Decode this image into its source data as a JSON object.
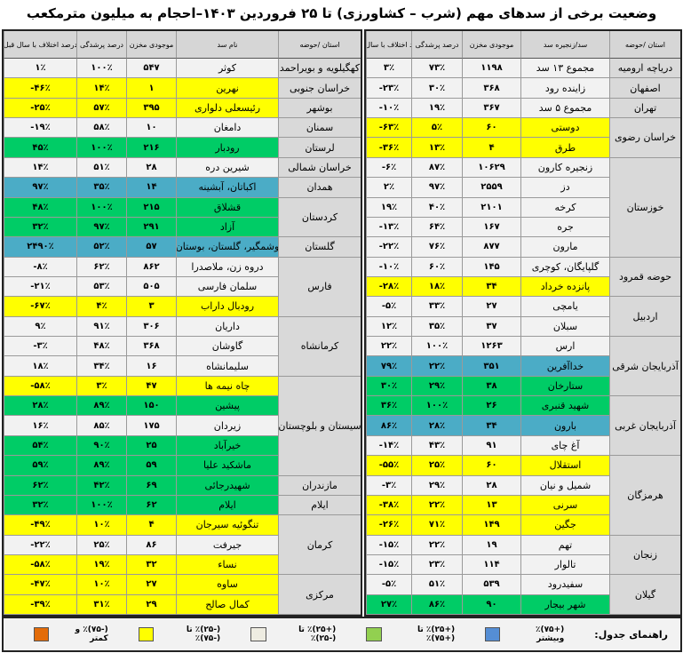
{
  "title": "وضعیت برخی از سدهای مهم (شرب – کشاورزی) تا ۲۵ فروردین ۱۴۰۳–احجام به میلیون مترمکعب",
  "headers": {
    "right": [
      "استان /حوضه",
      "سد/زنجیره سد",
      "موجودی مخزن",
      "درصد پرشدگی",
      "درصد اختلاف با سال قبل"
    ],
    "left": [
      "استان /حوضه",
      "نام سد",
      "موجودی مخزن",
      "درصد پرشدگی",
      "درصد اختلاف با سال قبل"
    ]
  },
  "colors": {
    "orange": "#e36c09",
    "yellow": "#ffff00",
    "white": "#f2f2f2",
    "green": "#00cc66",
    "light_green": "#92d050",
    "blue": "#4bacc6",
    "legend_blue": "#558ed5",
    "province_gray": "#d9d9d9"
  },
  "right_table": {
    "provinces": [
      {
        "name": "دریاچه ارومیه",
        "start": 0,
        "span": 1
      },
      {
        "name": "اصفهان",
        "start": 1,
        "span": 1
      },
      {
        "name": "تهران",
        "start": 2,
        "span": 1
      },
      {
        "name": "خراسان رضوی",
        "start": 3,
        "span": 2
      },
      {
        "name": "خوزستان",
        "start": 5,
        "span": 5
      },
      {
        "name": "حوضه قمرود",
        "start": 10,
        "span": 2
      },
      {
        "name": "اردبیل",
        "start": 12,
        "span": 2
      },
      {
        "name": "آذربایجان شرقی",
        "start": 14,
        "span": 3
      },
      {
        "name": "آذربایجان غربی",
        "start": 17,
        "span": 3
      },
      {
        "name": "هرمزگان",
        "start": 20,
        "span": 4
      },
      {
        "name": "زنجان",
        "start": 24,
        "span": 2
      },
      {
        "name": "گیلان",
        "start": 26,
        "span": 2
      }
    ],
    "rows": [
      {
        "dam": "مجموع ۱۳ سد",
        "storage": "۱۱۹۸",
        "fill": "۷۳٪",
        "diff": "۳٪",
        "color": "white"
      },
      {
        "dam": "زاینده رود",
        "storage": "۳۶۸",
        "fill": "۳۰٪",
        "diff": "-۲۳٪",
        "color": "white"
      },
      {
        "dam": "مجموع ۵ سد",
        "storage": "۳۶۷",
        "fill": "۱۹٪",
        "diff": "-۱۰٪",
        "color": "white"
      },
      {
        "dam": "دوستی",
        "storage": "۶۰",
        "fill": "۵٪",
        "diff": "-۶۳٪",
        "color": "yellow"
      },
      {
        "dam": "طرق",
        "storage": "۴",
        "fill": "۱۳٪",
        "diff": "-۳۶٪",
        "color": "yellow"
      },
      {
        "dam": "زنجیره کارون",
        "storage": "۱۰۶۲۹",
        "fill": "۸۷٪",
        "diff": "-۶٪",
        "color": "white"
      },
      {
        "dam": "دز",
        "storage": "۲۵۵۹",
        "fill": "۹۷٪",
        "diff": "۲٪",
        "color": "white"
      },
      {
        "dam": "کرخه",
        "storage": "۲۱۰۱",
        "fill": "۴۰٪",
        "diff": "۱۹٪",
        "color": "white"
      },
      {
        "dam": "جره",
        "storage": "۱۶۷",
        "fill": "۶۴٪",
        "diff": "-۱۳٪",
        "color": "white"
      },
      {
        "dam": "مارون",
        "storage": "۸۷۷",
        "fill": "۷۶٪",
        "diff": "-۲۲٪",
        "color": "white"
      },
      {
        "dam": "گلپایگان، کوچری",
        "storage": "۱۴۵",
        "fill": "۶۰٪",
        "diff": "-۱۰٪",
        "color": "white"
      },
      {
        "dam": "پانزده خرداد",
        "storage": "۳۴",
        "fill": "۱۸٪",
        "diff": "-۲۸٪",
        "color": "yellow"
      },
      {
        "dam": "یامچی",
        "storage": "۲۷",
        "fill": "۳۳٪",
        "diff": "-۵٪",
        "color": "white"
      },
      {
        "dam": "سبلان",
        "storage": "۳۷",
        "fill": "۳۵٪",
        "diff": "۱۲٪",
        "color": "white"
      },
      {
        "dam": "ارس",
        "storage": "۱۲۶۳",
        "fill": "۱۰۰٪",
        "diff": "۲۲٪",
        "color": "white"
      },
      {
        "dam": "خداآفرین",
        "storage": "۳۵۱",
        "fill": "۲۲٪",
        "diff": "۷۹٪",
        "color": "blue"
      },
      {
        "dam": "ستارخان",
        "storage": "۳۸",
        "fill": "۲۹٪",
        "diff": "۳۰٪",
        "color": "green"
      },
      {
        "dam": "شهید قنبری",
        "storage": "۲۶",
        "fill": "۱۰۰٪",
        "diff": "۳۶٪",
        "color": "green"
      },
      {
        "dam": "بارون",
        "storage": "۳۴",
        "fill": "۲۸٪",
        "diff": "۸۶٪",
        "color": "blue"
      },
      {
        "dam": "آغ چای",
        "storage": "۹۱",
        "fill": "۴۳٪",
        "diff": "-۱۴٪",
        "color": "white"
      },
      {
        "dam": "استقلال",
        "storage": "۶۰",
        "fill": "۲۵٪",
        "diff": "-۵۵٪",
        "color": "yellow"
      },
      {
        "dam": "شمیل و نیان",
        "storage": "۲۸",
        "fill": "۲۹٪",
        "diff": "-۳٪",
        "color": "white"
      },
      {
        "dam": "سرنی",
        "storage": "۱۳",
        "fill": "۲۲٪",
        "diff": "-۳۸٪",
        "color": "yellow"
      },
      {
        "dam": "جگین",
        "storage": "۱۴۹",
        "fill": "۷۱٪",
        "diff": "-۲۶٪",
        "color": "yellow"
      },
      {
        "dam": "تهم",
        "storage": "۱۹",
        "fill": "۲۲٪",
        "diff": "-۱۵٪",
        "color": "white"
      },
      {
        "dam": "تالوار",
        "storage": "۱۱۴",
        "fill": "۲۳٪",
        "diff": "-۱۵٪",
        "color": "white"
      },
      {
        "dam": "سفیدرود",
        "storage": "۵۳۹",
        "fill": "۵۱٪",
        "diff": "-۵٪",
        "color": "white"
      },
      {
        "dam": "شهر بیجار",
        "storage": "۹۰",
        "fill": "۸۶٪",
        "diff": "۲۷٪",
        "color": "green"
      }
    ]
  },
  "left_table": {
    "provinces": [
      {
        "name": "کهگیلویه و بویراحمد",
        "start": 0,
        "span": 1
      },
      {
        "name": "خراسان جنوبی",
        "start": 1,
        "span": 1
      },
      {
        "name": "بوشهر",
        "start": 2,
        "span": 1
      },
      {
        "name": "سمنان",
        "start": 3,
        "span": 1
      },
      {
        "name": "لرستان",
        "start": 4,
        "span": 1
      },
      {
        "name": "خراسان شمالی",
        "start": 5,
        "span": 1
      },
      {
        "name": "همدان",
        "start": 6,
        "span": 1
      },
      {
        "name": "کردستان",
        "start": 7,
        "span": 2
      },
      {
        "name": "گلستان",
        "start": 9,
        "span": 1
      },
      {
        "name": "فارس",
        "start": 10,
        "span": 3
      },
      {
        "name": "کرمانشاه",
        "start": 13,
        "span": 3
      },
      {
        "name": "سیستان و بلوچستان",
        "start": 16,
        "span": 5
      },
      {
        "name": "مازندران",
        "start": 21,
        "span": 1
      },
      {
        "name": "ایلام",
        "start": 22,
        "span": 1
      },
      {
        "name": "کرمان",
        "start": 23,
        "span": 3
      },
      {
        "name": "مرکزی",
        "start": 26,
        "span": 2
      }
    ],
    "rows": [
      {
        "dam": "کوثر",
        "storage": "۵۴۷",
        "fill": "۱۰۰٪",
        "diff": "۱٪",
        "color": "white"
      },
      {
        "dam": "نهرین",
        "storage": "۱",
        "fill": "۱۴٪",
        "diff": "-۴۶٪",
        "color": "yellow"
      },
      {
        "dam": "رئیسعلی دلواری",
        "storage": "۳۹۵",
        "fill": "۵۷٪",
        "diff": "-۲۵٪",
        "color": "yellow"
      },
      {
        "dam": "دامغان",
        "storage": "۱۰",
        "fill": "۵۸٪",
        "diff": "-۱۹٪",
        "color": "white"
      },
      {
        "dam": "رودبار",
        "storage": "۲۱۶",
        "fill": "۱۰۰٪",
        "diff": "۴۵٪",
        "color": "green"
      },
      {
        "dam": "شیرین دره",
        "storage": "۲۸",
        "fill": "۵۱٪",
        "diff": "۱۴٪",
        "color": "white"
      },
      {
        "dam": "اکباتان، آبشینه",
        "storage": "۱۴",
        "fill": "۳۵٪",
        "diff": "۹۷٪",
        "color": "blue"
      },
      {
        "dam": "قشلاق",
        "storage": "۲۱۵",
        "fill": "۱۰۰٪",
        "diff": "۴۸٪",
        "color": "green"
      },
      {
        "dam": "آزاد",
        "storage": "۲۹۱",
        "fill": "۹۷٪",
        "diff": "۳۲٪",
        "color": "green"
      },
      {
        "dam": "وشمگیر، گلستان، بوستان",
        "storage": "۵۷",
        "fill": "۵۲٪",
        "diff": "۲۴۹۰٪",
        "color": "blue"
      },
      {
        "dam": "دروه زن، ملاصدرا",
        "storage": "۸۶۲",
        "fill": "۶۲٪",
        "diff": "-۸٪",
        "color": "white"
      },
      {
        "dam": "سلمان فارسی",
        "storage": "۵۰۵",
        "fill": "۵۳٪",
        "diff": "-۲۱٪",
        "color": "white"
      },
      {
        "dam": "رودبال داراب",
        "storage": "۳",
        "fill": "۴٪",
        "diff": "-۶۷٪",
        "color": "yellow"
      },
      {
        "dam": "داریان",
        "storage": "۳۰۶",
        "fill": "۹۱٪",
        "diff": "۹٪",
        "color": "white"
      },
      {
        "dam": "گاوشان",
        "storage": "۳۶۸",
        "fill": "۴۸٪",
        "diff": "-۳٪",
        "color": "white"
      },
      {
        "dam": "سلیمانشاه",
        "storage": "۱۶",
        "fill": "۳۴٪",
        "diff": "۱۸٪",
        "color": "white"
      },
      {
        "dam": "چاه نیمه ها",
        "storage": "۴۷",
        "fill": "۳٪",
        "diff": "-۵۸٪",
        "color": "yellow"
      },
      {
        "dam": "پیشین",
        "storage": "۱۵۰",
        "fill": "۸۹٪",
        "diff": "۲۸٪",
        "color": "green"
      },
      {
        "dam": "زیردان",
        "storage": "۱۷۵",
        "fill": "۸۵٪",
        "diff": "۱۶٪",
        "color": "white"
      },
      {
        "dam": "خیرآباد",
        "storage": "۲۵",
        "fill": "۹۰٪",
        "diff": "۵۴٪",
        "color": "green"
      },
      {
        "dam": "ماشکید علیا",
        "storage": "۵۹",
        "fill": "۸۹٪",
        "diff": "۵۹٪",
        "color": "green"
      },
      {
        "dam": "شهیدرجائی",
        "storage": "۶۹",
        "fill": "۴۲٪",
        "diff": "۶۲٪",
        "color": "green"
      },
      {
        "dam": "ایلام",
        "storage": "۶۲",
        "fill": "۱۰۰٪",
        "diff": "۳۲٪",
        "color": "green"
      },
      {
        "dam": "تنگوئیه سیرجان",
        "storage": "۴",
        "fill": "۱۰٪",
        "diff": "-۴۹٪",
        "color": "yellow"
      },
      {
        "dam": "جیرفت",
        "storage": "۸۶",
        "fill": "۲۵٪",
        "diff": "-۲۲٪",
        "color": "white"
      },
      {
        "dam": "نساء",
        "storage": "۳۲",
        "fill": "۱۹٪",
        "diff": "-۵۸٪",
        "color": "yellow"
      },
      {
        "dam": "ساوه",
        "storage": "۲۷",
        "fill": "۱۰٪",
        "diff": "-۴۷٪",
        "color": "yellow"
      },
      {
        "dam": "کمال صالح",
        "storage": "۲۹",
        "fill": "۳۱٪",
        "diff": "-۳۹٪",
        "color": "yellow"
      }
    ]
  },
  "legend": {
    "title": "راهنمای جدول:",
    "items": [
      {
        "label": "(+۷۵)٪ وبیشتر",
        "color": "#558ed5"
      },
      {
        "label": "(+۲۵)٪ تا (+۷۵)٪",
        "color": "#92d050"
      },
      {
        "label": "(+۲۵)٪ تا (-۲۵)٪",
        "color": "#eeece1"
      },
      {
        "label": "(-۲۵)٪ تا (-۷۵)٪",
        "color": "#ffff00"
      },
      {
        "label": "(-۷۵)٪ و کمتر",
        "color": "#e36c09"
      }
    ]
  }
}
